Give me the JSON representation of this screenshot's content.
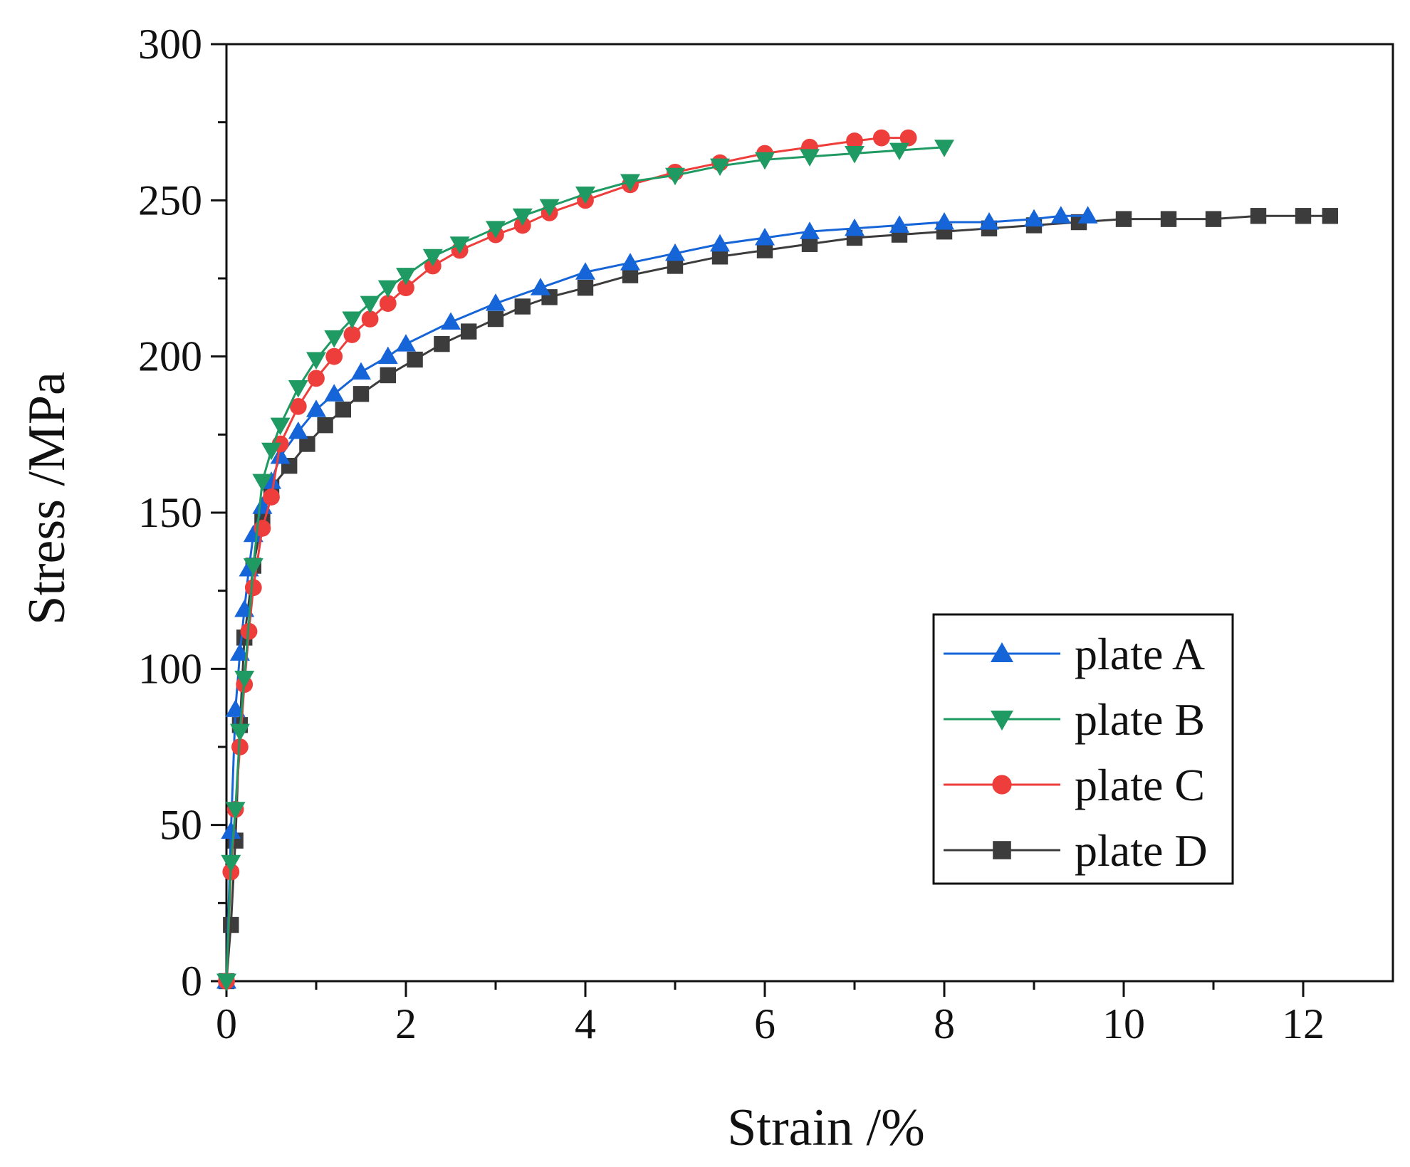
{
  "chart_data": {
    "type": "line",
    "title": "",
    "xlabel": "Strain /%",
    "ylabel": "Stress /MPa",
    "xlim": [
      0,
      13
    ],
    "ylim": [
      0,
      300
    ],
    "x_ticks": [
      0,
      2,
      4,
      6,
      8,
      10,
      12
    ],
    "x_tick_labels": [
      "0",
      "2",
      "4",
      "6",
      "8",
      "10",
      "12"
    ],
    "y_ticks": [
      0,
      50,
      100,
      150,
      200,
      250,
      300
    ],
    "y_tick_labels": [
      "0",
      "50",
      "100",
      "150",
      "200",
      "250",
      "300"
    ],
    "grid": false,
    "legend_position": "lower-right",
    "series": [
      {
        "name": "plate A",
        "color": "#1565d8",
        "marker": "triangle-up",
        "x": [
          0.0,
          0.05,
          0.1,
          0.15,
          0.2,
          0.25,
          0.3,
          0.4,
          0.5,
          0.6,
          0.8,
          1.0,
          1.2,
          1.5,
          1.8,
          2.0,
          2.5,
          3.0,
          3.5,
          4.0,
          4.5,
          5.0,
          5.5,
          6.0,
          6.5,
          7.0,
          7.5,
          8.0,
          8.5,
          9.0,
          9.3,
          9.6
        ],
        "values": [
          0,
          48,
          87,
          105,
          119,
          132,
          143,
          152,
          160,
          168,
          176,
          183,
          188,
          195,
          200,
          204,
          211,
          217,
          222,
          227,
          230,
          233,
          236,
          238,
          240,
          241,
          242,
          243,
          243,
          244,
          245,
          245
        ]
      },
      {
        "name": "plate B",
        "color": "#1e9a62",
        "marker": "triangle-down",
        "x": [
          0.0,
          0.05,
          0.1,
          0.15,
          0.2,
          0.3,
          0.4,
          0.5,
          0.6,
          0.8,
          1.0,
          1.2,
          1.4,
          1.6,
          1.8,
          2.0,
          2.3,
          2.6,
          3.0,
          3.3,
          3.6,
          4.0,
          4.5,
          5.0,
          5.5,
          6.0,
          6.5,
          7.0,
          7.5,
          8.0
        ],
        "values": [
          0,
          38,
          55,
          80,
          97,
          133,
          160,
          170,
          178,
          190,
          199,
          206,
          212,
          217,
          222,
          226,
          232,
          236,
          241,
          245,
          248,
          252,
          256,
          258,
          261,
          263,
          264,
          265,
          266,
          267
        ]
      },
      {
        "name": "plate C",
        "color": "#ee3e3c",
        "marker": "circle",
        "x": [
          0.0,
          0.05,
          0.1,
          0.15,
          0.2,
          0.25,
          0.3,
          0.4,
          0.5,
          0.6,
          0.8,
          1.0,
          1.2,
          1.4,
          1.6,
          1.8,
          2.0,
          2.3,
          2.6,
          3.0,
          3.3,
          3.6,
          4.0,
          4.5,
          5.0,
          5.5,
          6.0,
          6.5,
          7.0,
          7.3,
          7.6
        ],
        "values": [
          0,
          35,
          55,
          75,
          95,
          112,
          126,
          145,
          155,
          172,
          184,
          193,
          200,
          207,
          212,
          217,
          222,
          229,
          234,
          239,
          242,
          246,
          250,
          255,
          259,
          262,
          265,
          267,
          269,
          270,
          270
        ]
      },
      {
        "name": "plate D",
        "color": "#3c3c3c",
        "marker": "square",
        "x": [
          0.0,
          0.05,
          0.1,
          0.15,
          0.2,
          0.3,
          0.4,
          0.5,
          0.7,
          0.9,
          1.1,
          1.3,
          1.5,
          1.8,
          2.1,
          2.4,
          2.7,
          3.0,
          3.3,
          3.6,
          4.0,
          4.5,
          5.0,
          5.5,
          6.0,
          6.5,
          7.0,
          7.5,
          8.0,
          8.5,
          9.0,
          9.5,
          10.0,
          10.5,
          11.0,
          11.5,
          12.0,
          12.3
        ],
        "values": [
          0,
          18,
          45,
          82,
          110,
          133,
          148,
          158,
          165,
          172,
          178,
          183,
          188,
          194,
          199,
          204,
          208,
          212,
          216,
          219,
          222,
          226,
          229,
          232,
          234,
          236,
          238,
          239,
          240,
          241,
          242,
          243,
          244,
          244,
          244,
          245,
          245,
          245
        ]
      }
    ]
  }
}
